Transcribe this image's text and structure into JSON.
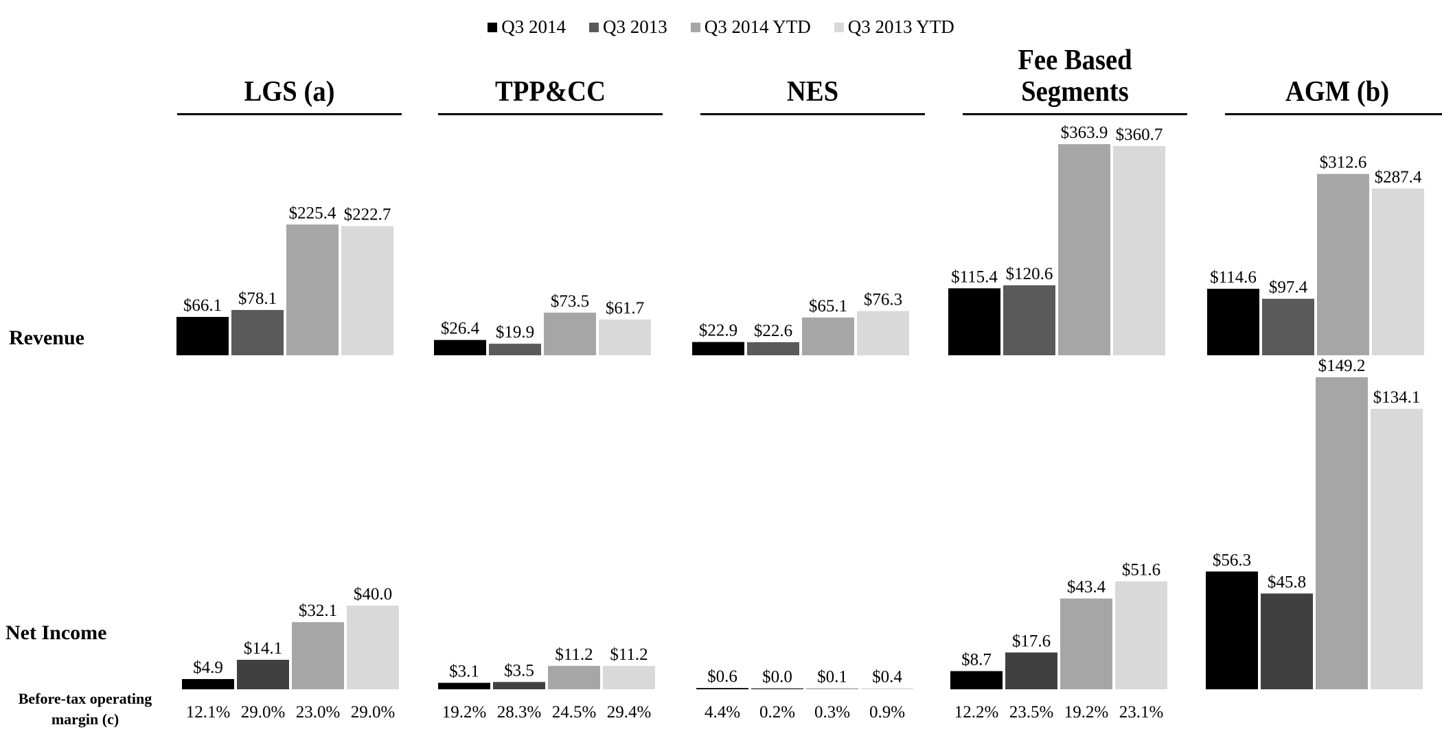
{
  "chart_data": {
    "type": "bar",
    "title": "",
    "legend_position": "top-center",
    "series_names": [
      "Q3 2014",
      "Q3 2013",
      "Q3 2014 YTD",
      "Q3 2013 YTD"
    ],
    "series_colors": {
      "revenue": [
        "#000000",
        "#5a5a5a",
        "#a6a6a6",
        "#d9d9d9"
      ],
      "net_income": [
        "#000000",
        "#404040",
        "#a6a6a6",
        "#d9d9d9"
      ]
    },
    "row_labels": {
      "revenue": "Revenue",
      "net_income": "Net Income",
      "margin_line1": "Before-tax operating",
      "margin_line2": "margin (c)"
    },
    "segments": [
      {
        "title_lines": [
          "LGS (a)"
        ],
        "revenue": [
          66.1,
          78.1,
          225.4,
          222.7
        ],
        "revenue_labels": [
          "$66.1",
          "$78.1",
          "$225.4",
          "$222.7"
        ],
        "net_income": [
          4.9,
          14.1,
          32.1,
          40.0
        ],
        "net_income_labels": [
          "$4.9",
          "$14.1",
          "$32.1",
          "$40.0"
        ],
        "margins": [
          "12.1%",
          "29.0%",
          "23.0%",
          "29.0%"
        ]
      },
      {
        "title_lines": [
          "TPP&CC"
        ],
        "revenue": [
          26.4,
          19.9,
          73.5,
          61.7
        ],
        "revenue_labels": [
          "$26.4",
          "$19.9",
          "$73.5",
          "$61.7"
        ],
        "net_income": [
          3.1,
          3.5,
          11.2,
          11.2
        ],
        "net_income_labels": [
          "$3.1",
          "$3.5",
          "$11.2",
          "$11.2"
        ],
        "margins": [
          "19.2%",
          "28.3%",
          "24.5%",
          "29.4%"
        ]
      },
      {
        "title_lines": [
          "NES"
        ],
        "revenue": [
          22.9,
          22.6,
          65.1,
          76.3
        ],
        "revenue_labels": [
          "$22.9",
          "$22.6",
          "$65.1",
          "$76.3"
        ],
        "net_income": [
          0.6,
          0.0,
          0.1,
          0.4
        ],
        "net_income_labels": [
          "$0.6",
          "$0.0",
          "$0.1",
          "$0.4"
        ],
        "margins": [
          "4.4%",
          "0.2%",
          "0.3%",
          "0.9%"
        ]
      },
      {
        "title_lines": [
          "Fee Based",
          "Segments"
        ],
        "revenue": [
          115.4,
          120.6,
          363.9,
          360.7
        ],
        "revenue_labels": [
          "$115.4",
          "$120.6",
          "$363.9",
          "$360.7"
        ],
        "net_income": [
          8.7,
          17.6,
          43.4,
          51.6
        ],
        "net_income_labels": [
          "$8.7",
          "$17.6",
          "$43.4",
          "$51.6"
        ],
        "margins": [
          "12.2%",
          "23.5%",
          "19.2%",
          "23.1%"
        ]
      },
      {
        "title_lines": [
          "AGM (b)"
        ],
        "revenue": [
          114.6,
          97.4,
          312.6,
          287.4
        ],
        "revenue_labels": [
          "$114.6",
          "$97.4",
          "$312.6",
          "$287.4"
        ],
        "net_income": [
          56.3,
          45.8,
          149.2,
          134.1
        ],
        "net_income_labels": [
          "$56.3",
          "$45.8",
          "$149.2",
          "$134.1"
        ],
        "margins": []
      }
    ]
  }
}
